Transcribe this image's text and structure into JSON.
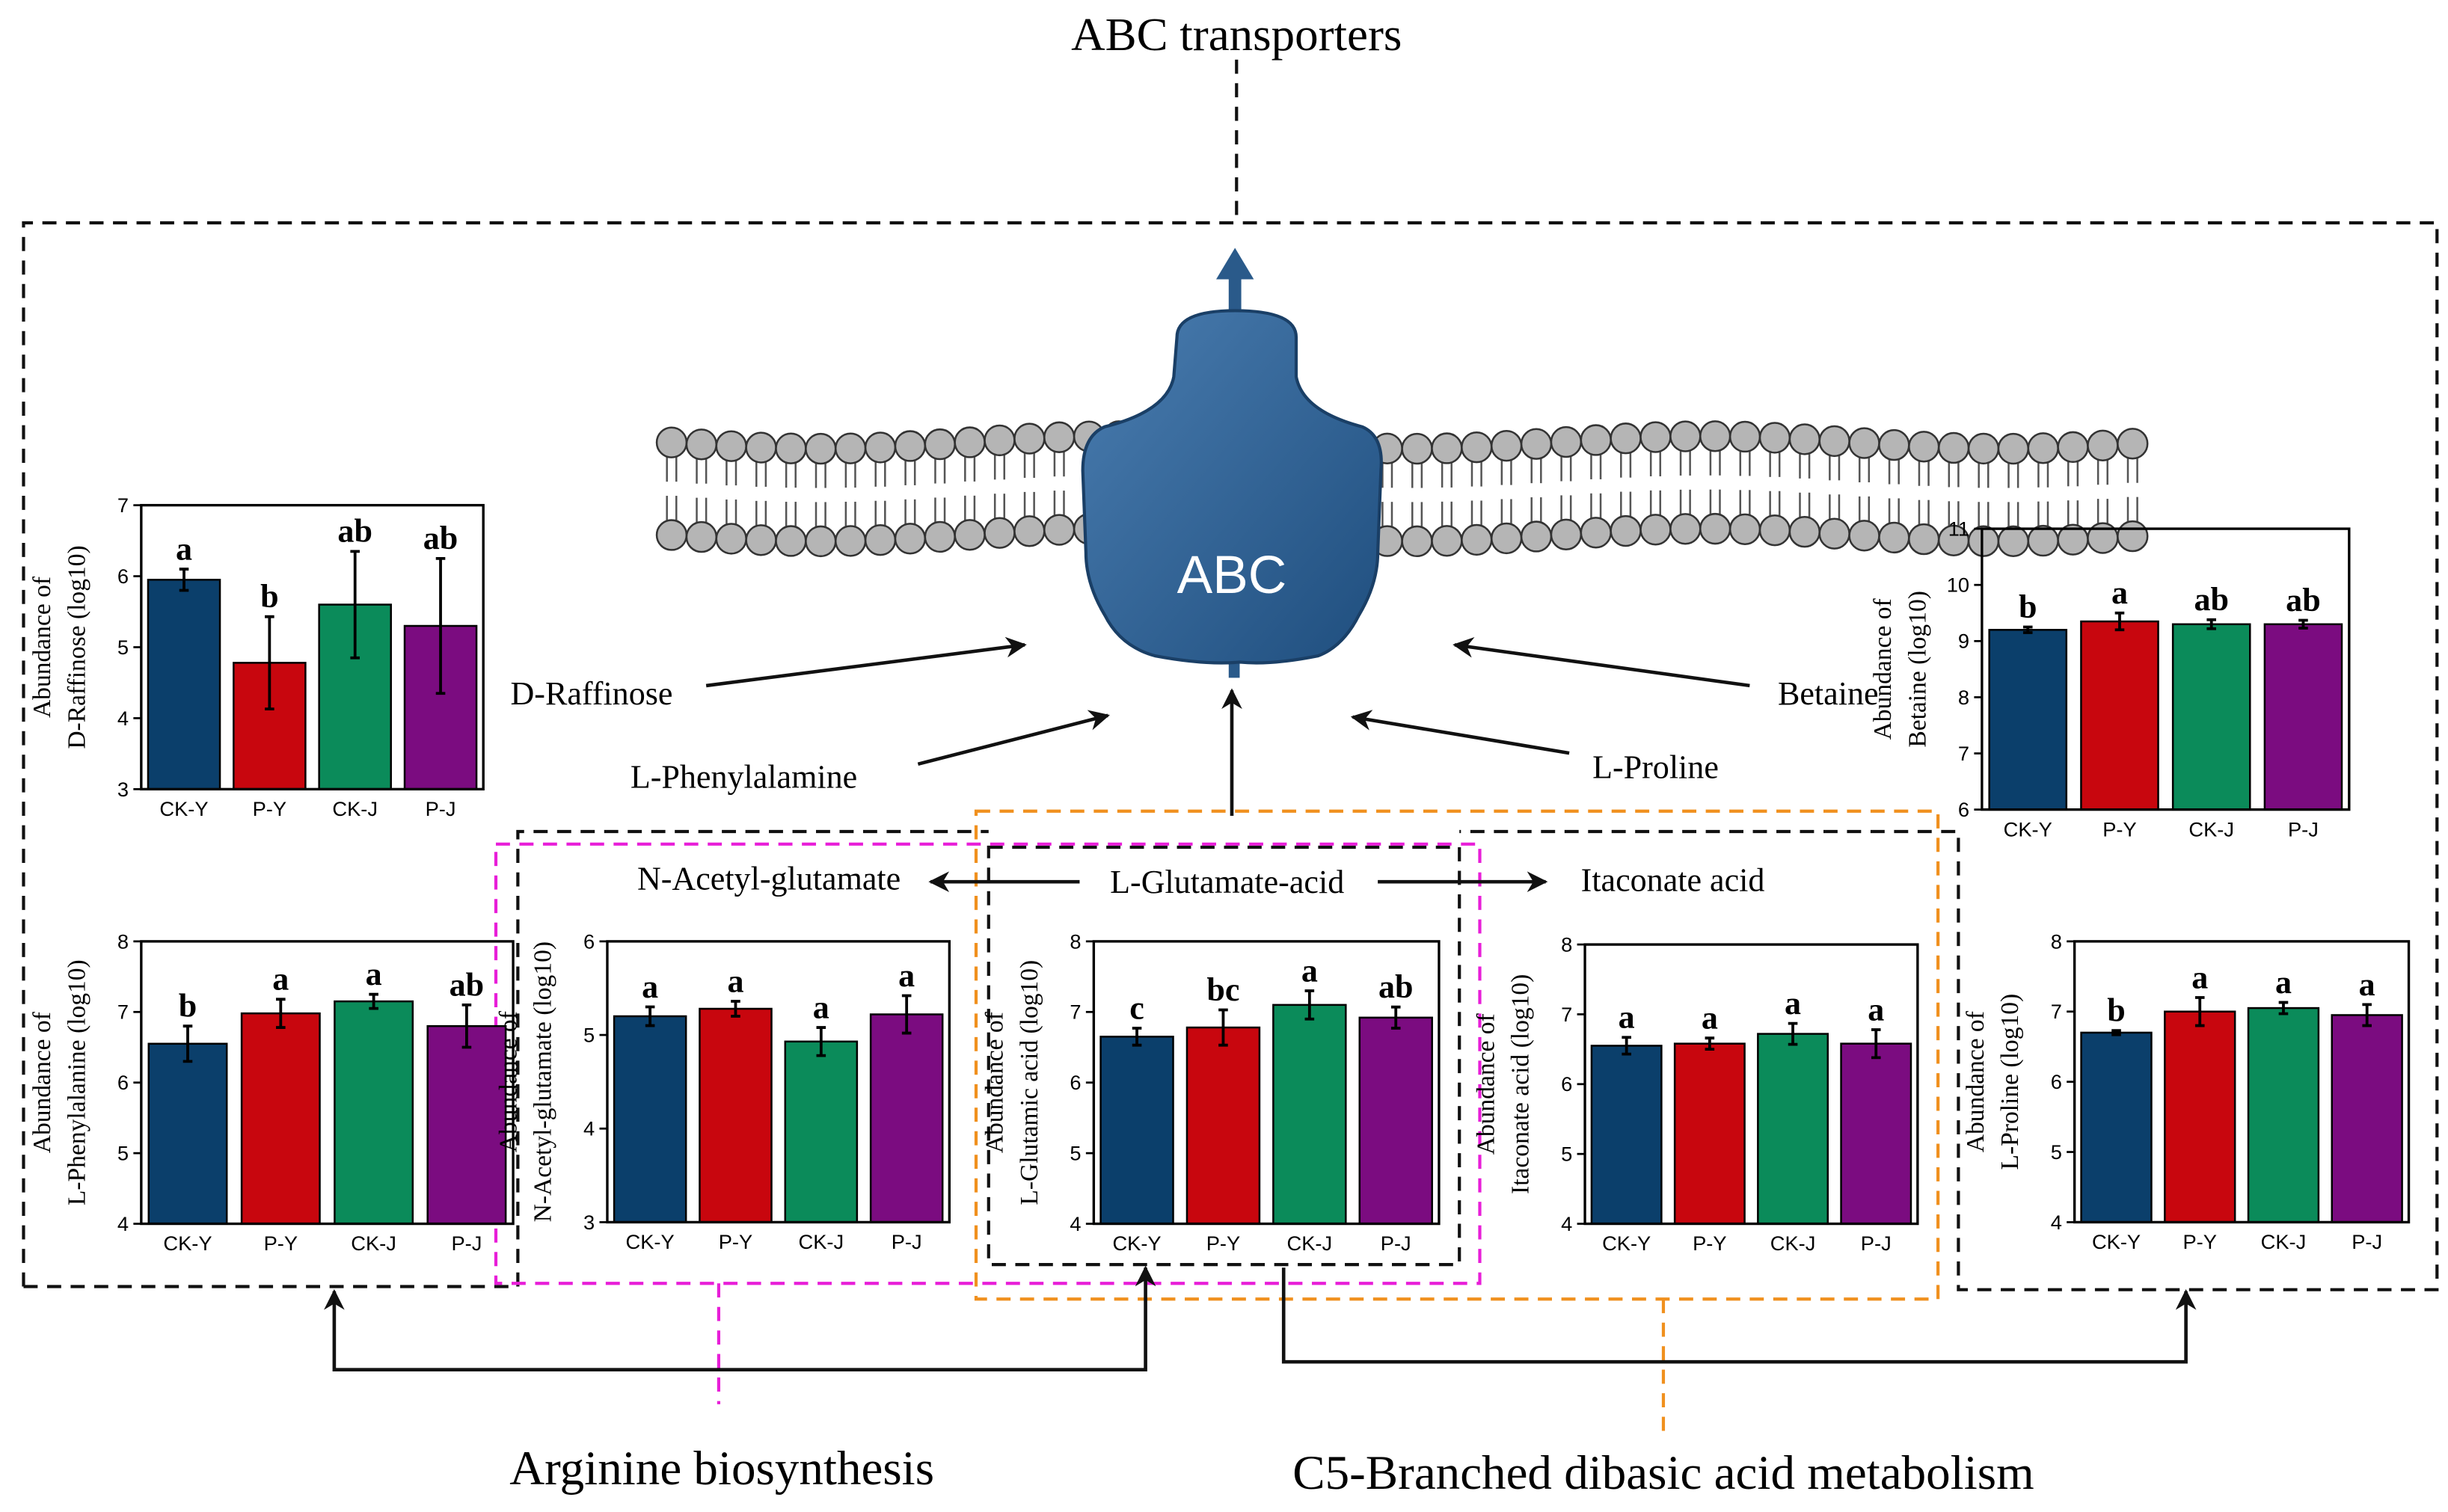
{
  "diagram": {
    "title": "ABC transporters",
    "protein": "ABC",
    "metabolites": {
      "raffinose": "D-Raffinose",
      "phenylalanine": "L-Phenylalamine",
      "betaine": "Betaine",
      "proline": "L-Proline",
      "acetylglutamate": "N-Acetyl-glutamate",
      "glutamate": "L-Glutamate-acid",
      "itaconate": "Itaconate acid"
    },
    "pathways": [
      "Arginine biosynthesis",
      "C5-Branched dibasic acid metabolism"
    ]
  },
  "chart_data": [
    {
      "type": "bar",
      "ylabel": [
        "Abundance of",
        "D-Raffinose (log10)"
      ],
      "categories": [
        "CK-Y",
        "P-Y",
        "CK-J",
        "P-J"
      ],
      "colors": [
        "#0b3f6b",
        "#c8060e",
        "#0b8b5a",
        "#7b0c80"
      ],
      "values": [
        5.95,
        4.78,
        5.6,
        5.3
      ],
      "errors": [
        0.15,
        0.65,
        0.75,
        0.95
      ],
      "annotations": [
        "a",
        "b",
        "ab",
        "ab"
      ],
      "ylim": [
        3,
        7
      ],
      "yticks": [
        3,
        4,
        5,
        6,
        7
      ]
    },
    {
      "type": "bar",
      "ylabel": [
        "Abundance of",
        "Betaine (log10)"
      ],
      "categories": [
        "CK-Y",
        "P-Y",
        "CK-J",
        "P-J"
      ],
      "colors": [
        "#0b3f6b",
        "#c8060e",
        "#0b8b5a",
        "#7b0c80"
      ],
      "values": [
        9.2,
        9.35,
        9.3,
        9.3
      ],
      "errors": [
        0.05,
        0.15,
        0.08,
        0.07
      ],
      "annotations": [
        "b",
        "a",
        "ab",
        "ab"
      ],
      "ylim": [
        6,
        11
      ],
      "yticks": [
        6,
        7,
        8,
        9,
        10,
        11
      ]
    },
    {
      "type": "bar",
      "ylabel": [
        "Abundance of",
        "L-Phenylalanine (log10)"
      ],
      "categories": [
        "CK-Y",
        "P-Y",
        "CK-J",
        "P-J"
      ],
      "colors": [
        "#0b3f6b",
        "#c8060e",
        "#0b8b5a",
        "#7b0c80"
      ],
      "values": [
        6.55,
        6.98,
        7.15,
        6.8
      ],
      "errors": [
        0.25,
        0.2,
        0.1,
        0.3
      ],
      "annotations": [
        "b",
        "a",
        "a",
        "ab"
      ],
      "ylim": [
        4,
        8
      ],
      "yticks": [
        4,
        5,
        6,
        7,
        8
      ]
    },
    {
      "type": "bar",
      "ylabel": [
        "Abundance of",
        "N-Acetyl-glutamate (log10)"
      ],
      "categories": [
        "CK-Y",
        "P-Y",
        "CK-J",
        "P-J"
      ],
      "colors": [
        "#0b3f6b",
        "#c8060e",
        "#0b8b5a",
        "#7b0c80"
      ],
      "values": [
        5.2,
        5.28,
        4.93,
        5.22
      ],
      "errors": [
        0.1,
        0.08,
        0.15,
        0.2
      ],
      "annotations": [
        "a",
        "a",
        "a",
        "a"
      ],
      "ylim": [
        3,
        6
      ],
      "yticks": [
        3,
        4,
        5,
        6
      ]
    },
    {
      "type": "bar",
      "ylabel": [
        "Abundance of",
        "L-Glutamic acid (log10)"
      ],
      "categories": [
        "CK-Y",
        "P-Y",
        "CK-J",
        "P-J"
      ],
      "colors": [
        "#0b3f6b",
        "#c8060e",
        "#0b8b5a",
        "#7b0c80"
      ],
      "values": [
        6.65,
        6.78,
        7.1,
        6.92
      ],
      "errors": [
        0.12,
        0.25,
        0.2,
        0.15
      ],
      "annotations": [
        "c",
        "bc",
        "a",
        "ab"
      ],
      "ylim": [
        4,
        8
      ],
      "yticks": [
        4,
        5,
        6,
        7,
        8
      ]
    },
    {
      "type": "bar",
      "ylabel": [
        "Abundance of",
        "Itaconate acid (log10)"
      ],
      "categories": [
        "CK-Y",
        "P-Y",
        "CK-J",
        "P-J"
      ],
      "colors": [
        "#0b3f6b",
        "#c8060e",
        "#0b8b5a",
        "#7b0c80"
      ],
      "values": [
        6.55,
        6.58,
        6.72,
        6.58
      ],
      "errors": [
        0.12,
        0.08,
        0.15,
        0.2
      ],
      "annotations": [
        "a",
        "a",
        "a",
        "a"
      ],
      "ylim": [
        4,
        8
      ],
      "yticks": [
        4,
        5,
        6,
        7,
        8
      ]
    },
    {
      "type": "bar",
      "ylabel": [
        "Abundance of",
        "L-Proline (log10)"
      ],
      "categories": [
        "CK-Y",
        "P-Y",
        "CK-J",
        "P-J"
      ],
      "colors": [
        "#0b3f6b",
        "#c8060e",
        "#0b8b5a",
        "#7b0c80"
      ],
      "values": [
        6.7,
        7.0,
        7.05,
        6.95
      ],
      "errors": [
        0.03,
        0.2,
        0.08,
        0.15
      ],
      "annotations": [
        "b",
        "a",
        "a",
        "a"
      ],
      "ylim": [
        4,
        8
      ],
      "yticks": [
        4,
        5,
        6,
        7,
        8
      ]
    }
  ]
}
